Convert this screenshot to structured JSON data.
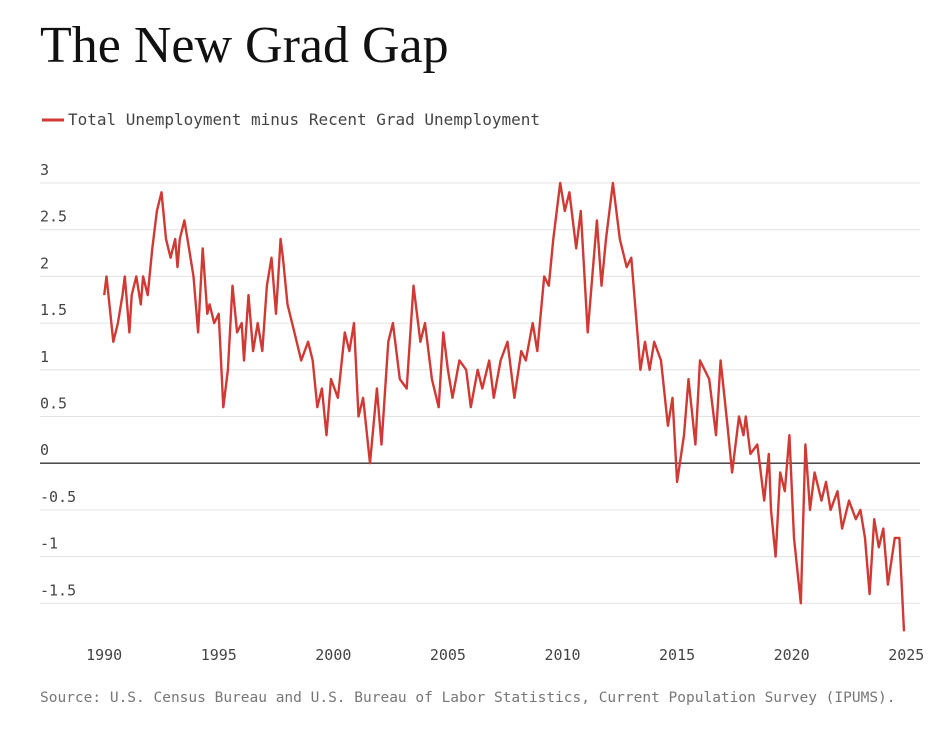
{
  "chart_data": {
    "type": "line",
    "title": "The New Grad Gap",
    "source": "Source: U.S. Census Bureau and U.S. Bureau of Labor Statistics, Current Population Survey (IPUMS).",
    "x": [
      1990.0,
      1990.1,
      1990.4,
      1990.6,
      1990.8,
      1990.9,
      1991.1,
      1991.2,
      1991.4,
      1991.6,
      1991.7,
      1991.9,
      1992.1,
      1992.3,
      1992.5,
      1992.7,
      1992.9,
      1993.1,
      1993.2,
      1993.3,
      1993.5,
      1993.7,
      1993.9,
      1994.1,
      1994.3,
      1994.5,
      1994.6,
      1994.8,
      1995.0,
      1995.2,
      1995.4,
      1995.6,
      1995.8,
      1996.0,
      1996.1,
      1996.3,
      1996.5,
      1996.7,
      1996.9,
      1997.1,
      1997.3,
      1997.5,
      1997.7,
      1997.8,
      1998.0,
      1998.3,
      1998.6,
      1998.9,
      1999.1,
      1999.3,
      1999.5,
      1999.7,
      1999.9,
      2000.2,
      2000.5,
      2000.7,
      2000.9,
      2001.1,
      2001.3,
      2001.6,
      2001.9,
      2002.1,
      2002.4,
      2002.6,
      2002.9,
      2003.2,
      2003.5,
      2003.8,
      2004.0,
      2004.3,
      2004.6,
      2004.8,
      2005.0,
      2005.2,
      2005.5,
      2005.8,
      2006.0,
      2006.3,
      2006.5,
      2006.8,
      2007.0,
      2007.3,
      2007.6,
      2007.9,
      2008.2,
      2008.4,
      2008.7,
      2008.9,
      2009.2,
      2009.4,
      2009.6,
      2009.9,
      2010.1,
      2010.3,
      2010.6,
      2010.8,
      2011.1,
      2011.3,
      2011.5,
      2011.7,
      2011.9,
      2012.2,
      2012.5,
      2012.8,
      2013.0,
      2013.4,
      2013.6,
      2013.8,
      2014.0,
      2014.3,
      2014.6,
      2014.8,
      2015.0,
      2015.3,
      2015.5,
      2015.8,
      2016.0,
      2016.4,
      2016.7,
      2016.9,
      2017.2,
      2017.4,
      2017.7,
      2017.9,
      2018.0,
      2018.2,
      2018.5,
      2018.8,
      2019.0,
      2019.1,
      2019.3,
      2019.5,
      2019.7,
      2019.9,
      2020.1,
      2020.4,
      2020.6,
      2020.8,
      2021.0,
      2021.3,
      2021.5,
      2021.7,
      2022.0,
      2022.2,
      2022.5,
      2022.8,
      2023.0,
      2023.2,
      2023.4,
      2023.6,
      2023.8,
      2024.0,
      2024.2,
      2024.5,
      2024.7,
      2024.9
    ],
    "series": [
      {
        "name": "Total Unemployment minus Recent Grad Unemployment",
        "color": "#d03a34",
        "values": [
          1.8,
          2.0,
          1.3,
          1.5,
          1.8,
          2.0,
          1.4,
          1.8,
          2.0,
          1.7,
          2.0,
          1.8,
          2.3,
          2.7,
          2.9,
          2.4,
          2.2,
          2.4,
          2.1,
          2.4,
          2.6,
          2.3,
          2.0,
          1.4,
          2.3,
          1.6,
          1.7,
          1.5,
          1.6,
          0.6,
          1.0,
          1.9,
          1.4,
          1.5,
          1.1,
          1.8,
          1.2,
          1.5,
          1.2,
          1.9,
          2.2,
          1.6,
          2.4,
          2.2,
          1.7,
          1.4,
          1.1,
          1.3,
          1.1,
          0.6,
          0.8,
          0.3,
          0.9,
          0.7,
          1.4,
          1.2,
          1.5,
          0.5,
          0.7,
          0.0,
          0.8,
          0.2,
          1.3,
          1.5,
          0.9,
          0.8,
          1.9,
          1.3,
          1.5,
          0.9,
          0.6,
          1.4,
          1.0,
          0.7,
          1.1,
          1.0,
          0.6,
          1.0,
          0.8,
          1.1,
          0.7,
          1.1,
          1.3,
          0.7,
          1.2,
          1.1,
          1.5,
          1.2,
          2.0,
          1.9,
          2.4,
          3.0,
          2.7,
          2.9,
          2.3,
          2.7,
          1.4,
          2.0,
          2.6,
          1.9,
          2.4,
          3.0,
          2.4,
          2.1,
          2.2,
          1.0,
          1.3,
          1.0,
          1.3,
          1.1,
          0.4,
          0.7,
          -0.2,
          0.3,
          0.9,
          0.2,
          1.1,
          0.9,
          0.3,
          1.1,
          0.4,
          -0.1,
          0.5,
          0.3,
          0.5,
          0.1,
          0.2,
          -0.4,
          0.1,
          -0.5,
          -1.0,
          -0.1,
          -0.3,
          0.3,
          -0.8,
          -1.5,
          0.2,
          -0.5,
          -0.1,
          -0.4,
          -0.2,
          -0.5,
          -0.3,
          -0.7,
          -0.4,
          -0.6,
          -0.5,
          -0.8,
          -1.4,
          -0.6,
          -0.9,
          -0.7,
          -1.3,
          -0.8,
          -0.8,
          -1.8
        ]
      }
    ],
    "xlim": [
      1987.2,
      2025.6
    ],
    "xticks": [
      1990,
      1995,
      2000,
      2005,
      2010,
      2015,
      2020,
      2025
    ],
    "ylim": [
      -1.85,
      3.0
    ],
    "yticks": [
      3,
      2.5,
      2,
      1.5,
      1,
      0.5,
      0,
      -0.5,
      -1,
      -1.5
    ],
    "grid": true
  }
}
